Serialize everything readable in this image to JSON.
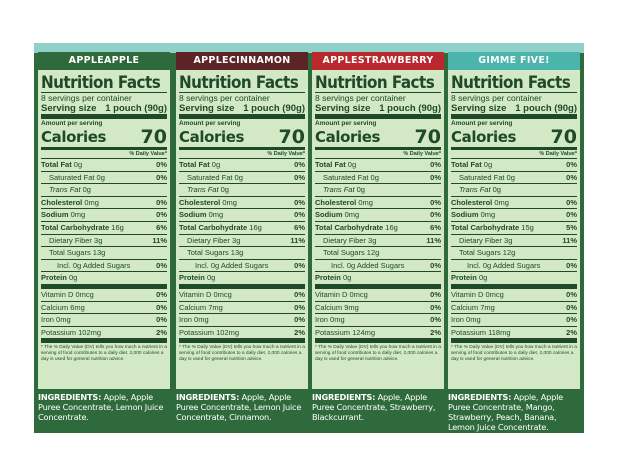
{
  "panels": [
    {
      "banner": "APPLEAPPLE",
      "banner_color": "#2f6a3c",
      "title": "Nutrition Facts",
      "servings": "8 servings per container",
      "serving_size_label": "Serving size",
      "serving_size_value": "1 pouch (90g)",
      "amount_per_serving": "Amount per serving",
      "calories_label": "Calories",
      "calories": "70",
      "dv_header": "% Daily Value*",
      "rows": [
        {
          "label": "Total Fat",
          "value": "0g",
          "dv": "0%"
        },
        {
          "label": "Saturated Fat",
          "value": "0g",
          "dv": "0%"
        },
        {
          "label": "Trans Fat",
          "value": "0g",
          "dv": ""
        },
        {
          "label": "Cholesterol",
          "value": "0mg",
          "dv": "0%"
        },
        {
          "label": "Sodium",
          "value": "0mg",
          "dv": "0%"
        },
        {
          "label": "Total Carbohydrate",
          "value": "16g",
          "dv": "6%"
        },
        {
          "label": "Dietary Fiber",
          "value": "3g",
          "dv": "11%"
        },
        {
          "label": "Total Sugars",
          "value": "13g",
          "dv": ""
        },
        {
          "label": "Incl. 0g Added Sugars",
          "value": "",
          "dv": "0%"
        },
        {
          "label": "Protein",
          "value": "0g",
          "dv": ""
        },
        {
          "label": "Vitamin D",
          "value": "0mcg",
          "dv": "0%"
        },
        {
          "label": "Calcium",
          "value": "6mg",
          "dv": "0%"
        },
        {
          "label": "Iron",
          "value": "0mg",
          "dv": "0%"
        },
        {
          "label": "Potassium",
          "value": "102mg",
          "dv": "2%"
        }
      ],
      "footnote": "* The % Daily Value (DV) tells you how much a nutrient in a serving of food contributes to a daily diet. 2,000 calories a day is used for general nutrition advice.",
      "ingredients_label": "INGREDIENTS:",
      "ingredients": "Apple, Apple Puree Concentrate, Lemon Juice Concentrate."
    },
    {
      "banner": "APPLECINNAMON",
      "banner_color": "#5c2427",
      "title": "Nutrition Facts",
      "servings": "8 servings per container",
      "serving_size_label": "Serving size",
      "serving_size_value": "1 pouch (90g)",
      "amount_per_serving": "Amount per serving",
      "calories_label": "Calories",
      "calories": "70",
      "dv_header": "% Daily Value*",
      "rows": [
        {
          "label": "Total Fat",
          "value": "0g",
          "dv": "0%"
        },
        {
          "label": "Saturated Fat",
          "value": "0g",
          "dv": "0%"
        },
        {
          "label": "Trans Fat",
          "value": "0g",
          "dv": ""
        },
        {
          "label": "Cholesterol",
          "value": "0mg",
          "dv": "0%"
        },
        {
          "label": "Sodium",
          "value": "0mg",
          "dv": "0%"
        },
        {
          "label": "Total Carbohydrate",
          "value": "16g",
          "dv": "6%"
        },
        {
          "label": "Dietary Fiber",
          "value": "3g",
          "dv": "11%"
        },
        {
          "label": "Total Sugars",
          "value": "13g",
          "dv": ""
        },
        {
          "label": "Incl. 0g Added Sugars",
          "value": "",
          "dv": "0%"
        },
        {
          "label": "Protein",
          "value": "0g",
          "dv": ""
        },
        {
          "label": "Vitamin D",
          "value": "0mcg",
          "dv": "0%"
        },
        {
          "label": "Calcium",
          "value": "7mg",
          "dv": "0%"
        },
        {
          "label": "Iron",
          "value": "0mg",
          "dv": "0%"
        },
        {
          "label": "Potassium",
          "value": "102mg",
          "dv": "2%"
        }
      ],
      "footnote": "* The % Daily Value (DV) tells you how much a nutrient in a serving of food contributes to a daily diet. 2,000 calories a day is used for general nutrition advice.",
      "ingredients_label": "INGREDIENTS:",
      "ingredients": "Apple, Apple Puree Concentrate, Lemon Juice Concentrate, Cinnamon."
    },
    {
      "banner": "APPLESTRAWBERRY",
      "banner_color": "#b8282d",
      "title": "Nutrition Facts",
      "servings": "8 servings per container",
      "serving_size_label": "Serving size",
      "serving_size_value": "1 pouch (90g)",
      "amount_per_serving": "Amount per serving",
      "calories_label": "Calories",
      "calories": "70",
      "dv_header": "% Daily Value*",
      "rows": [
        {
          "label": "Total Fat",
          "value": "0g",
          "dv": "0%"
        },
        {
          "label": "Saturated Fat",
          "value": "0g",
          "dv": "0%"
        },
        {
          "label": "Trans Fat",
          "value": "0g",
          "dv": ""
        },
        {
          "label": "Cholesterol",
          "value": "0mg",
          "dv": "0%"
        },
        {
          "label": "Sodium",
          "value": "0mg",
          "dv": "0%"
        },
        {
          "label": "Total Carbohydrate",
          "value": "16g",
          "dv": "6%"
        },
        {
          "label": "Dietary Fiber",
          "value": "3g",
          "dv": "11%"
        },
        {
          "label": "Total Sugars",
          "value": "12g",
          "dv": ""
        },
        {
          "label": "Incl. 0g Added Sugars",
          "value": "",
          "dv": "0%"
        },
        {
          "label": "Protein",
          "value": "0g",
          "dv": ""
        },
        {
          "label": "Vitamin D",
          "value": "0mcg",
          "dv": "0%"
        },
        {
          "label": "Calcium",
          "value": "9mg",
          "dv": "0%"
        },
        {
          "label": "Iron",
          "value": "0mg",
          "dv": "0%"
        },
        {
          "label": "Potassium",
          "value": "124mg",
          "dv": "2%"
        }
      ],
      "footnote": "* The % Daily Value (DV) tells you how much a nutrient in a serving of food contributes to a daily diet. 2,000 calories a day is used for general nutrition advice.",
      "ingredients_label": "INGREDIENTS:",
      "ingredients": "Apple, Apple Puree Concentrate, Strawberry, Blackcurrant."
    },
    {
      "banner": "GIMME FIVE!",
      "banner_color": "#4bb5ac",
      "title": "Nutrition Facts",
      "servings": "8 servings per container",
      "serving_size_label": "Serving size",
      "serving_size_value": "1 pouch (90g)",
      "amount_per_serving": "Amount per serving",
      "calories_label": "Calories",
      "calories": "70",
      "dv_header": "% Daily Value*",
      "rows": [
        {
          "label": "Total Fat",
          "value": "0g",
          "dv": "0%"
        },
        {
          "label": "Saturated Fat",
          "value": "0g",
          "dv": "0%"
        },
        {
          "label": "Trans Fat",
          "value": "0g",
          "dv": ""
        },
        {
          "label": "Cholesterol",
          "value": "0mg",
          "dv": "0%"
        },
        {
          "label": "Sodium",
          "value": "0mg",
          "dv": "0%"
        },
        {
          "label": "Total Carbohydrate",
          "value": "15g",
          "dv": "5%"
        },
        {
          "label": "Dietary Fiber",
          "value": "3g",
          "dv": "11%"
        },
        {
          "label": "Total Sugars",
          "value": "12g",
          "dv": ""
        },
        {
          "label": "Incl. 0g Added Sugars",
          "value": "",
          "dv": "0%"
        },
        {
          "label": "Protein",
          "value": "0g",
          "dv": ""
        },
        {
          "label": "Vitamin D",
          "value": "0mcg",
          "dv": "0%"
        },
        {
          "label": "Calcium",
          "value": "7mg",
          "dv": "0%"
        },
        {
          "label": "Iron",
          "value": "0mg",
          "dv": "0%"
        },
        {
          "label": "Potassium",
          "value": "118mg",
          "dv": "2%"
        }
      ],
      "footnote": "* The % Daily Value (DV) tells you how much a nutrient in a serving of food contributes to a daily diet. 2,000 calories a day is used for general nutrition advice.",
      "ingredients_label": "INGREDIENTS:",
      "ingredients": "Apple, Apple Puree Concentrate, Mango, Strawberry, Peach, Banana, Lemon Juice Concentrate."
    }
  ]
}
